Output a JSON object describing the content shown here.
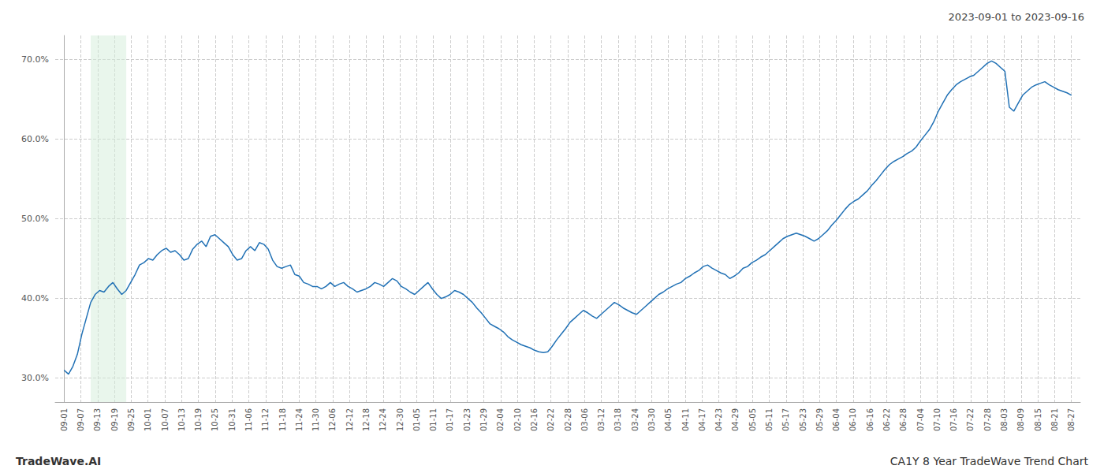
{
  "chart_data": {
    "type": "line",
    "title": "2023-09-01 to 2023-09-16",
    "annotations": [
      "TradeWave.AI",
      "CA1Y 8 Year TradeWave Trend Chart"
    ],
    "color": "#2171b5",
    "grid": true,
    "highlight": {
      "range": [
        6,
        14
      ],
      "color": "#d4edda"
    },
    "xlim": [
      -2,
      229
    ],
    "xticks": [
      {
        "value": 0,
        "label": "09-01"
      },
      {
        "value": 3.7833,
        "label": "09-07"
      },
      {
        "value": 7.5667,
        "label": "09-13"
      },
      {
        "value": 11.35,
        "label": "09-19"
      },
      {
        "value": 15.1333,
        "label": "09-25"
      },
      {
        "value": 18.9167,
        "label": "10-01"
      },
      {
        "value": 22.7,
        "label": "10-07"
      },
      {
        "value": 26.4833,
        "label": "10-13"
      },
      {
        "value": 30.2667,
        "label": "10-19"
      },
      {
        "value": 34.05,
        "label": "10-25"
      },
      {
        "value": 37.8333,
        "label": "10-31"
      },
      {
        "value": 41.6167,
        "label": "11-06"
      },
      {
        "value": 45.4,
        "label": "11-12"
      },
      {
        "value": 49.1833,
        "label": "11-18"
      },
      {
        "value": 52.9667,
        "label": "11-24"
      },
      {
        "value": 56.75,
        "label": "11-30"
      },
      {
        "value": 60.5333,
        "label": "12-06"
      },
      {
        "value": 64.3167,
        "label": "12-12"
      },
      {
        "value": 68.1,
        "label": "12-18"
      },
      {
        "value": 71.8833,
        "label": "12-24"
      },
      {
        "value": 75.6667,
        "label": "12-30"
      },
      {
        "value": 79.45,
        "label": "01-05"
      },
      {
        "value": 83.2333,
        "label": "01-11"
      },
      {
        "value": 87.0167,
        "label": "01-17"
      },
      {
        "value": 90.8,
        "label": "01-23"
      },
      {
        "value": 94.5833,
        "label": "01-29"
      },
      {
        "value": 98.3667,
        "label": "02-04"
      },
      {
        "value": 102.15,
        "label": "02-10"
      },
      {
        "value": 105.9333,
        "label": "02-16"
      },
      {
        "value": 109.7167,
        "label": "02-22"
      },
      {
        "value": 113.5,
        "label": "02-28"
      },
      {
        "value": 117.2833,
        "label": "03-06"
      },
      {
        "value": 121.0667,
        "label": "03-12"
      },
      {
        "value": 124.85,
        "label": "03-18"
      },
      {
        "value": 128.6333,
        "label": "03-24"
      },
      {
        "value": 132.4167,
        "label": "03-30"
      },
      {
        "value": 136.2,
        "label": "04-05"
      },
      {
        "value": 139.9833,
        "label": "04-11"
      },
      {
        "value": 143.7667,
        "label": "04-17"
      },
      {
        "value": 147.55,
        "label": "04-23"
      },
      {
        "value": 151.3333,
        "label": "04-29"
      },
      {
        "value": 155.1167,
        "label": "05-05"
      },
      {
        "value": 158.9,
        "label": "05-11"
      },
      {
        "value": 162.6833,
        "label": "05-17"
      },
      {
        "value": 166.4667,
        "label": "05-23"
      },
      {
        "value": 170.25,
        "label": "05-29"
      },
      {
        "value": 174.0333,
        "label": "06-04"
      },
      {
        "value": 177.8167,
        "label": "06-10"
      },
      {
        "value": 181.6,
        "label": "06-16"
      },
      {
        "value": 185.3833,
        "label": "06-22"
      },
      {
        "value": 189.1667,
        "label": "06-28"
      },
      {
        "value": 192.95,
        "label": "07-04"
      },
      {
        "value": 196.7333,
        "label": "07-10"
      },
      {
        "value": 200.5167,
        "label": "07-16"
      },
      {
        "value": 204.3,
        "label": "07-22"
      },
      {
        "value": 208.0833,
        "label": "07-28"
      },
      {
        "value": 211.8667,
        "label": "08-03"
      },
      {
        "value": 215.65,
        "label": "08-09"
      },
      {
        "value": 219.4333,
        "label": "08-15"
      },
      {
        "value": 223.2167,
        "label": "08-21"
      },
      {
        "value": 227,
        "label": "08-27"
      }
    ],
    "ylim": [
      0.27,
      0.73
    ],
    "yticks": [
      {
        "value": 0.3,
        "label": "30.0%"
      },
      {
        "value": 0.4,
        "label": "40.0%"
      },
      {
        "value": 0.5,
        "label": "50.0%"
      },
      {
        "value": 0.6,
        "label": "60.0%"
      },
      {
        "value": 0.7,
        "label": "70.0%"
      }
    ],
    "x": [
      0,
      1,
      2,
      3,
      4,
      5,
      6,
      7,
      8,
      9,
      10,
      11,
      12,
      13,
      14,
      15,
      16,
      17,
      18,
      19,
      20,
      21,
      22,
      23,
      24,
      25,
      26,
      27,
      28,
      29,
      30,
      31,
      32,
      33,
      34,
      35,
      36,
      37,
      38,
      39,
      40,
      41,
      42,
      43,
      44,
      45,
      46,
      47,
      48,
      49,
      50,
      51,
      52,
      53,
      54,
      55,
      56,
      57,
      58,
      59,
      60,
      61,
      62,
      63,
      64,
      65,
      66,
      67,
      68,
      69,
      70,
      71,
      72,
      73,
      74,
      75,
      76,
      77,
      78,
      79,
      80,
      81,
      82,
      83,
      84,
      85,
      86,
      87,
      88,
      89,
      90,
      91,
      92,
      93,
      94,
      95,
      96,
      97,
      98,
      99,
      100,
      101,
      102,
      103,
      104,
      105,
      106,
      107,
      108,
      109,
      110,
      111,
      112,
      113,
      114,
      115,
      116,
      117,
      118,
      119,
      120,
      121,
      122,
      123,
      124,
      125,
      126,
      127,
      128,
      129,
      130,
      131,
      132,
      133,
      134,
      135,
      136,
      137,
      138,
      139,
      140,
      141,
      142,
      143,
      144,
      145,
      146,
      147,
      148,
      149,
      150,
      151,
      152,
      153,
      154,
      155,
      156,
      157,
      158,
      159,
      160,
      161,
      162,
      163,
      164,
      165,
      166,
      167,
      168,
      169,
      170,
      171,
      172,
      173,
      174,
      175,
      176,
      177,
      178,
      179,
      180,
      181,
      182,
      183,
      184,
      185,
      186,
      187,
      188,
      189,
      190,
      191,
      192,
      193,
      194,
      195,
      196,
      197,
      198,
      199,
      200,
      201,
      202,
      203,
      204,
      205,
      206,
      207,
      208,
      209,
      210,
      211,
      212,
      213,
      214,
      215,
      216,
      217,
      218,
      219,
      220,
      221,
      222,
      223,
      224,
      225,
      226,
      227
    ],
    "values": [
      0.31,
      0.305,
      0.315,
      0.33,
      0.355,
      0.375,
      0.395,
      0.405,
      0.41,
      0.408,
      0.415,
      0.42,
      0.412,
      0.405,
      0.41,
      0.42,
      0.43,
      0.442,
      0.445,
      0.45,
      0.448,
      0.455,
      0.46,
      0.463,
      0.458,
      0.46,
      0.455,
      0.448,
      0.45,
      0.462,
      0.468,
      0.472,
      0.465,
      0.478,
      0.48,
      0.475,
      0.47,
      0.465,
      0.455,
      0.448,
      0.45,
      0.46,
      0.465,
      0.46,
      0.47,
      0.468,
      0.462,
      0.448,
      0.44,
      0.438,
      0.44,
      0.442,
      0.43,
      0.428,
      0.42,
      0.418,
      0.415,
      0.415,
      0.412,
      0.415,
      0.42,
      0.415,
      0.418,
      0.42,
      0.415,
      0.412,
      0.408,
      0.41,
      0.412,
      0.415,
      0.42,
      0.418,
      0.415,
      0.42,
      0.425,
      0.422,
      0.415,
      0.412,
      0.408,
      0.405,
      0.41,
      0.415,
      0.42,
      0.412,
      0.405,
      0.4,
      0.402,
      0.405,
      0.41,
      0.408,
      0.405,
      0.4,
      0.395,
      0.388,
      0.382,
      0.375,
      0.368,
      0.365,
      0.362,
      0.358,
      0.352,
      0.348,
      0.345,
      0.342,
      0.34,
      0.338,
      0.335,
      0.333,
      0.332,
      0.333,
      0.34,
      0.348,
      0.355,
      0.362,
      0.37,
      0.375,
      0.38,
      0.385,
      0.382,
      0.378,
      0.375,
      0.38,
      0.385,
      0.39,
      0.395,
      0.392,
      0.388,
      0.385,
      0.382,
      0.38,
      0.385,
      0.39,
      0.395,
      0.4,
      0.405,
      0.408,
      0.412,
      0.415,
      0.418,
      0.42,
      0.425,
      0.428,
      0.432,
      0.435,
      0.44,
      0.442,
      0.438,
      0.435,
      0.432,
      0.43,
      0.425,
      0.428,
      0.432,
      0.438,
      0.44,
      0.445,
      0.448,
      0.452,
      0.455,
      0.46,
      0.465,
      0.47,
      0.475,
      0.478,
      0.48,
      0.482,
      0.48,
      0.478,
      0.475,
      0.472,
      0.475,
      0.48,
      0.485,
      0.492,
      0.498,
      0.505,
      0.512,
      0.518,
      0.522,
      0.525,
      0.53,
      0.535,
      0.542,
      0.548,
      0.555,
      0.562,
      0.568,
      0.572,
      0.575,
      0.578,
      0.582,
      0.585,
      0.59,
      0.598,
      0.605,
      0.612,
      0.622,
      0.635,
      0.645,
      0.655,
      0.662,
      0.668,
      0.672,
      0.675,
      0.678,
      0.68,
      0.685,
      0.69,
      0.695,
      0.698,
      0.695,
      0.69,
      0.685,
      0.64,
      0.635,
      0.645,
      0.655,
      0.66,
      0.665,
      0.668,
      0.67,
      0.672,
      0.668,
      0.665,
      0.662,
      0.66,
      0.658,
      0.655
    ]
  }
}
